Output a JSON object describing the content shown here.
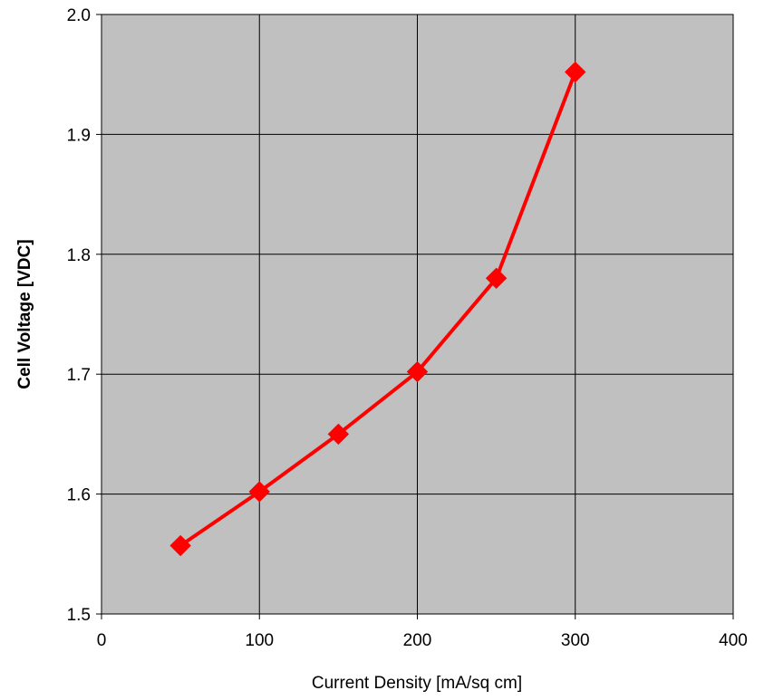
{
  "chart_data": {
    "type": "line",
    "title": "",
    "xlabel": "Current Density [mA/sq cm]",
    "ylabel": "Cell Voltage [VDC]",
    "xlim": [
      0,
      400
    ],
    "ylim": [
      1.5,
      2.0
    ],
    "x_ticks": [
      0,
      100,
      200,
      300,
      400
    ],
    "x_tick_labels": [
      "0",
      "100",
      "200",
      "300",
      "400"
    ],
    "y_ticks": [
      1.5,
      1.6,
      1.7,
      1.8,
      1.9,
      2.0
    ],
    "y_tick_labels": [
      "1.5",
      "1.6",
      "1.7",
      "1.8",
      "1.9",
      "2.0"
    ],
    "grid": true,
    "legend": "none",
    "plot_background": "#c0c0c0",
    "grid_color": "#000000",
    "series": [
      {
        "color": "#ff0000",
        "marker": "diamond",
        "x": [
          50,
          100,
          150,
          200,
          250,
          300
        ],
        "y": [
          1.557,
          1.602,
          1.65,
          1.702,
          1.78,
          1.952
        ]
      }
    ]
  }
}
